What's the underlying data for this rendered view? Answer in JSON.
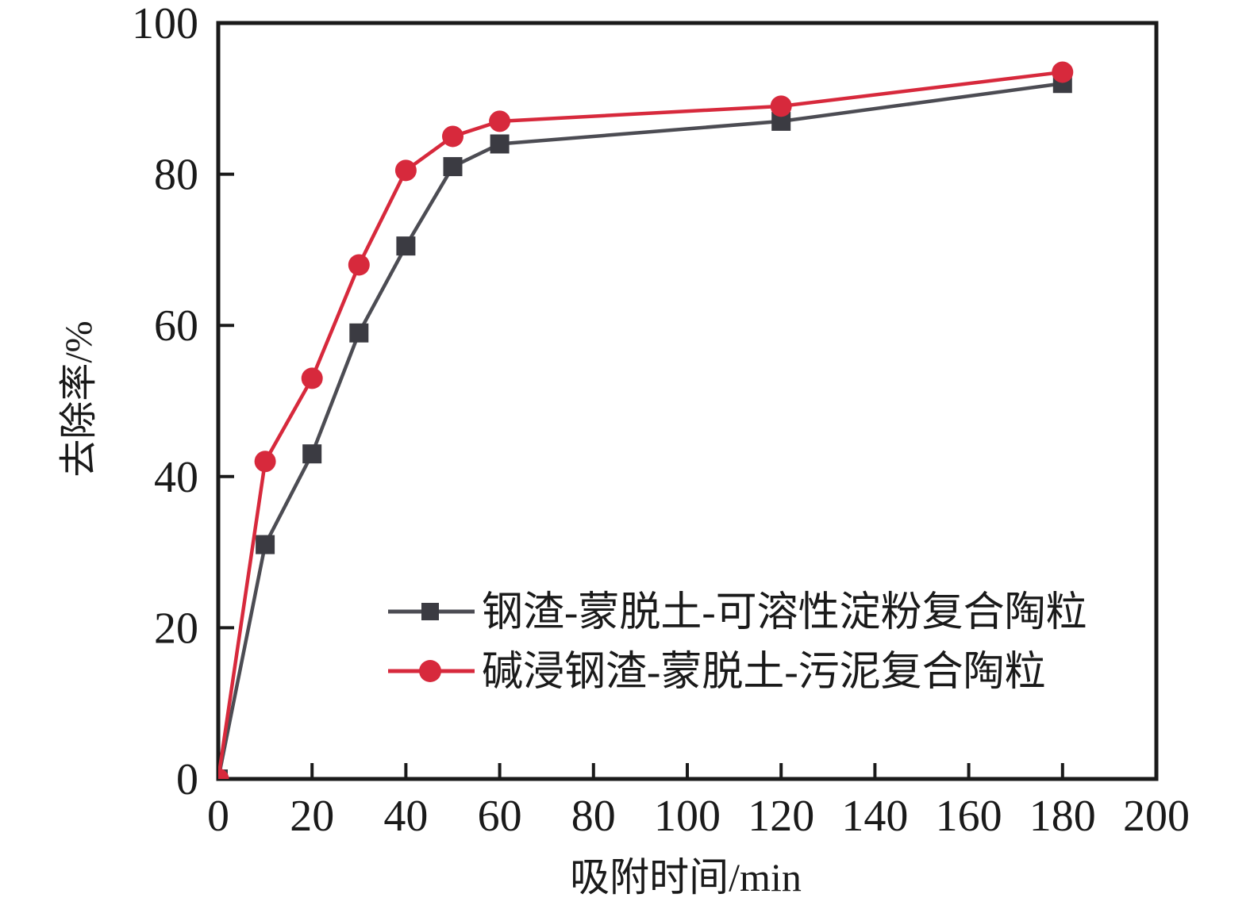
{
  "figure_title": "",
  "chart_data": {
    "type": "line",
    "title": "",
    "xlabel": "吸附时间/min",
    "ylabel": "去除率/%",
    "xlim": [
      0,
      200
    ],
    "ylim": [
      0,
      100
    ],
    "xticks": [
      0,
      20,
      40,
      60,
      80,
      100,
      120,
      140,
      160,
      180,
      200
    ],
    "yticks": [
      0,
      20,
      40,
      60,
      80,
      100
    ],
    "grid": false,
    "legend_position": "inside lower-center-left",
    "axis_color": "#1a1a1a",
    "x": [
      0,
      10,
      20,
      30,
      40,
      50,
      60,
      120,
      180
    ],
    "series": [
      {
        "name": "钢渣-蒙脱土-可溶性淀粉复合陶粒",
        "marker": "square",
        "line_color": "#4c4c53",
        "marker_color": "#3b3b42",
        "values": [
          0,
          31,
          43,
          59,
          70.5,
          81,
          84,
          87,
          92
        ]
      },
      {
        "name": "碱浸钢渣-蒙脱土-污泥复合陶粒",
        "marker": "circle",
        "line_color": "#d7293c",
        "marker_color": "#d7293c",
        "values": [
          0,
          42,
          53,
          68,
          80.5,
          85,
          87,
          89,
          93.5
        ]
      }
    ]
  }
}
